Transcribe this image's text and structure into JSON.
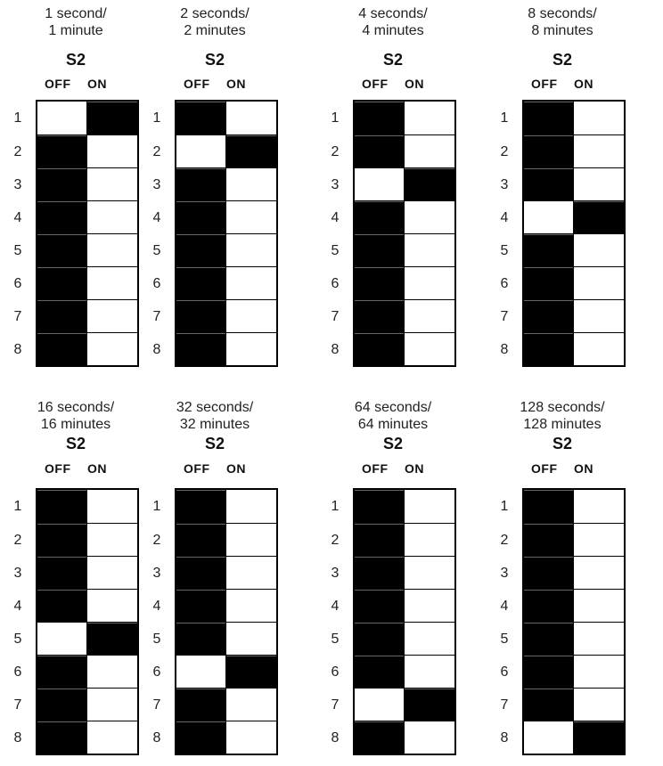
{
  "switch_name": "S2",
  "off_label": "OFF",
  "on_label": "ON",
  "row_numbers": [
    "1",
    "2",
    "3",
    "4",
    "5",
    "6",
    "7",
    "8"
  ],
  "panels": [
    {
      "title": "1 second/\n1 minute",
      "on_position": 1
    },
    {
      "title": "2 seconds/\n2 minutes",
      "on_position": 2
    },
    {
      "title": "4 seconds/\n4 minutes",
      "on_position": 3
    },
    {
      "title": "8 seconds/\n8 minutes",
      "on_position": 4
    },
    {
      "title": "16 seconds/\n16 minutes",
      "on_position": 5
    },
    {
      "title": "32 seconds/\n32 minutes",
      "on_position": 6
    },
    {
      "title": "64 seconds/\n64 minutes",
      "on_position": 7
    },
    {
      "title": "128 seconds/\n128 minutes",
      "on_position": 8
    }
  ]
}
